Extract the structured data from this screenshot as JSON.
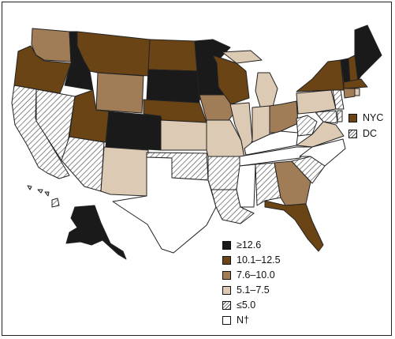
{
  "map": {
    "colors": {
      "c1": "#1a1a1a",
      "c2": "#6b4416",
      "c3": "#a17d57",
      "c4": "#dccab5",
      "c5": "hatch",
      "c6": "#ffffff",
      "stroke": "#222222"
    },
    "legend": [
      {
        "label": "≥12.6",
        "class": "c1"
      },
      {
        "label": "10.1–12.5",
        "class": "c2"
      },
      {
        "label": "7.6–10.0",
        "class": "c3"
      },
      {
        "label": "5.1–7.5",
        "class": "c4"
      },
      {
        "label": "≤5.0",
        "class": "c5"
      },
      {
        "label": "N†",
        "class": "c6"
      }
    ],
    "side_legend": [
      {
        "label": "NYC",
        "class": "c2"
      },
      {
        "label": "DC",
        "class": "c5"
      }
    ],
    "states": [
      {
        "name": "WA",
        "class": "c3"
      },
      {
        "name": "OR",
        "class": "c2"
      },
      {
        "name": "CA",
        "class": "c5"
      },
      {
        "name": "NV",
        "class": "c5"
      },
      {
        "name": "ID",
        "class": "c1"
      },
      {
        "name": "MT",
        "class": "c2"
      },
      {
        "name": "WY",
        "class": "c3"
      },
      {
        "name": "UT",
        "class": "c2"
      },
      {
        "name": "AZ",
        "class": "c5"
      },
      {
        "name": "CO",
        "class": "c1"
      },
      {
        "name": "NM",
        "class": "c4"
      },
      {
        "name": "ND",
        "class": "c2"
      },
      {
        "name": "SD",
        "class": "c1"
      },
      {
        "name": "NE",
        "class": "c2"
      },
      {
        "name": "KS",
        "class": "c4"
      },
      {
        "name": "OK",
        "class": "c5"
      },
      {
        "name": "TX",
        "class": "c6"
      },
      {
        "name": "MN",
        "class": "c1"
      },
      {
        "name": "IA",
        "class": "c3"
      },
      {
        "name": "MO",
        "class": "c4"
      },
      {
        "name": "AR",
        "class": "c5"
      },
      {
        "name": "LA",
        "class": "c5"
      },
      {
        "name": "WI",
        "class": "c2"
      },
      {
        "name": "IL",
        "class": "c4"
      },
      {
        "name": "MI",
        "class": "c4"
      },
      {
        "name": "IN",
        "class": "c4"
      },
      {
        "name": "OH",
        "class": "c3"
      },
      {
        "name": "KY",
        "class": "c6"
      },
      {
        "name": "TN",
        "class": "c6"
      },
      {
        "name": "MS",
        "class": "c6"
      },
      {
        "name": "AL",
        "class": "c5"
      },
      {
        "name": "GA",
        "class": "c3"
      },
      {
        "name": "FL",
        "class": "c2"
      },
      {
        "name": "SC",
        "class": "c5"
      },
      {
        "name": "NC",
        "class": "c6"
      },
      {
        "name": "VA",
        "class": "c4"
      },
      {
        "name": "WV",
        "class": "c5"
      },
      {
        "name": "PA",
        "class": "c4"
      },
      {
        "name": "NY",
        "class": "c2"
      },
      {
        "name": "VT",
        "class": "c1"
      },
      {
        "name": "NH",
        "class": "c2"
      },
      {
        "name": "ME",
        "class": "c1"
      },
      {
        "name": "MA",
        "class": "c2"
      },
      {
        "name": "CT",
        "class": "c3"
      },
      {
        "name": "RI",
        "class": "c4"
      },
      {
        "name": "NJ",
        "class": "c5"
      },
      {
        "name": "DE",
        "class": "c5"
      },
      {
        "name": "MD",
        "class": "c5"
      },
      {
        "name": "AK",
        "class": "c1"
      },
      {
        "name": "HI",
        "class": "c5"
      }
    ]
  }
}
